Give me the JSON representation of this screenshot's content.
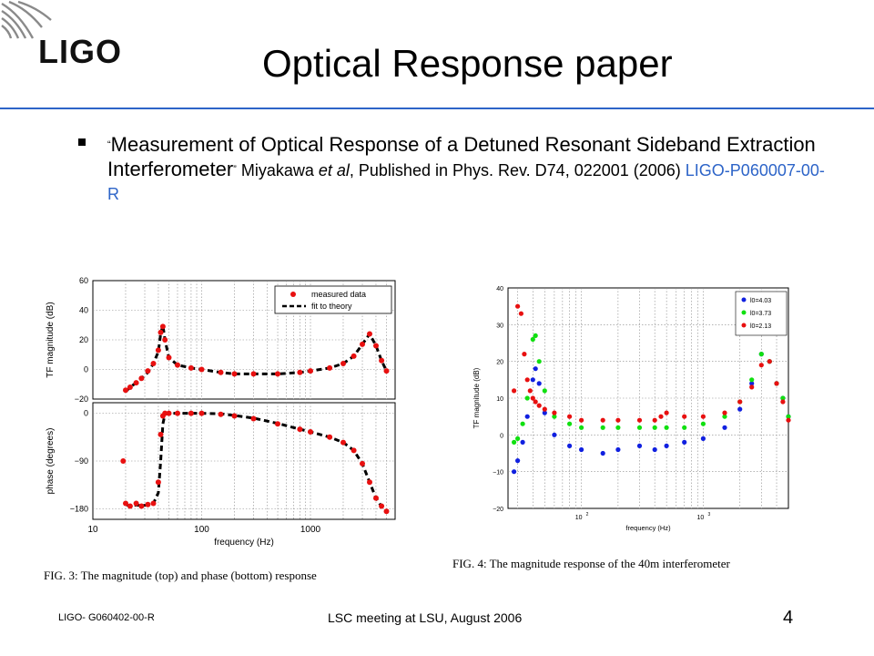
{
  "header": {
    "logo_text": "LIGO",
    "title": "Optical Response paper"
  },
  "bullet": {
    "open_quote": "“",
    "title_text": "Measurement of Optical Response of a Detuned Resonant Sideband Extraction Interferometer",
    "close_quote": "”",
    "authors": " Miyakawa ",
    "et_al": "et al",
    "published": ", Published in Phys. Rev. D74, 022001 (2006) ",
    "link_text": "LIGO-P060007-00-R"
  },
  "colors": {
    "accent_blue": "#2d64c8",
    "series_red": "#e81010",
    "series_green": "#10e010",
    "series_blue": "#1020e0"
  },
  "figures": {
    "fig3_caption": "FIG. 3: The magnitude (top) and phase (bottom) response",
    "fig4_caption": "FIG. 4: The magnitude response of the 40m interferometer"
  },
  "chart_data": [
    {
      "type": "line",
      "panel": "fig3-top",
      "xscale": "log",
      "xlim": [
        10,
        6000
      ],
      "ylim": [
        -20,
        60
      ],
      "ylabel": "TF magnitude (dB)",
      "yticks": [
        "60",
        "40",
        "20",
        "0",
        "−20"
      ],
      "legend": {
        "placement": "top-right",
        "entries": [
          "measured data",
          "fit to theory"
        ]
      },
      "grid": true,
      "series": [
        {
          "name": "measured data",
          "x": [
            20,
            22,
            25,
            28,
            32,
            36,
            40,
            42,
            44,
            46,
            50,
            60,
            80,
            100,
            150,
            200,
            300,
            500,
            800,
            1000,
            1500,
            2000,
            2500,
            3000,
            3500,
            4000,
            4500,
            5000
          ],
          "y": [
            -14,
            -12,
            -9,
            -6,
            -1,
            4,
            13,
            25,
            29,
            20,
            8,
            3,
            1,
            0,
            -2,
            -3,
            -3,
            -3,
            -2,
            -1,
            1,
            4,
            9,
            17,
            24,
            16,
            6,
            -1
          ]
        },
        {
          "name": "fit to theory",
          "x": [
            20,
            22,
            25,
            28,
            32,
            36,
            40,
            42,
            44,
            46,
            50,
            60,
            80,
            100,
            150,
            200,
            300,
            500,
            800,
            1000,
            1500,
            2000,
            2500,
            3000,
            3500,
            4000,
            4500,
            5000
          ],
          "y": [
            -15,
            -12,
            -9,
            -6,
            -2,
            4,
            12,
            24,
            30,
            20,
            8,
            3,
            1,
            0,
            -2,
            -3,
            -3,
            -3,
            -2,
            -1,
            1,
            4,
            9,
            17,
            24,
            16,
            6,
            -1
          ]
        }
      ]
    },
    {
      "type": "line",
      "panel": "fig3-bottom",
      "xscale": "log",
      "xlim": [
        10,
        6000
      ],
      "ylim": [
        -200,
        20
      ],
      "ylabel": "phase (degrees)",
      "xlabel": "frequency (Hz)",
      "yticks": [
        "0",
        "−90",
        "−180"
      ],
      "xticks": [
        "10",
        "100",
        "1000"
      ],
      "grid": true,
      "series": [
        {
          "name": "measured data",
          "x": [
            19,
            20,
            22,
            25,
            28,
            32,
            36,
            40,
            42,
            44,
            46,
            50,
            60,
            80,
            100,
            150,
            200,
            300,
            500,
            800,
            1000,
            1500,
            2000,
            2500,
            3000,
            3500,
            4000,
            4500,
            5000
          ],
          "y": [
            -90,
            -170,
            -175,
            -170,
            -175,
            -172,
            -170,
            -130,
            -40,
            -5,
            0,
            0,
            0,
            0,
            0,
            -2,
            -5,
            -10,
            -20,
            -30,
            -35,
            -45,
            -55,
            -70,
            -95,
            -130,
            -160,
            -175,
            -185
          ]
        },
        {
          "name": "fit to theory",
          "x": [
            20,
            22,
            25,
            28,
            32,
            36,
            40,
            42,
            44,
            46,
            50,
            60,
            80,
            100,
            150,
            200,
            300,
            500,
            800,
            1000,
            1500,
            2000,
            2500,
            3000,
            3500,
            4000,
            4500,
            5000
          ],
          "y": [
            -172,
            -175,
            -173,
            -174,
            -173,
            -170,
            -150,
            -90,
            -20,
            -2,
            0,
            0,
            0,
            0,
            -1,
            -4,
            -9,
            -19,
            -30,
            -35,
            -45,
            -55,
            -70,
            -95,
            -130,
            -160,
            -176,
            -185
          ]
        }
      ]
    },
    {
      "type": "scatter",
      "panel": "fig4",
      "xscale": "log",
      "xlim": [
        25,
        5000
      ],
      "ylim": [
        -20,
        40
      ],
      "ylabel": "TF magnitude (dB)",
      "xlabel": "frequency (Hz)",
      "yticks": [
        "40",
        "30",
        "20",
        "10",
        "0",
        "−10",
        "−20"
      ],
      "xticks": [
        "10",
        "2",
        "10",
        "3"
      ],
      "legend": {
        "placement": "top-right",
        "entries": [
          "l0=4.03",
          "l0=3.73",
          "l0=2.13"
        ]
      },
      "grid": true,
      "series": [
        {
          "name": "l0=4.03",
          "x": [
            28,
            30,
            33,
            36,
            40,
            42,
            45,
            50,
            60,
            80,
            100,
            150,
            200,
            300,
            400,
            500,
            700,
            1000,
            1500,
            2000,
            2500,
            3000,
            3500,
            4000,
            4500,
            5000
          ],
          "y": [
            -10,
            -7,
            -2,
            5,
            15,
            18,
            14,
            6,
            0,
            -3,
            -4,
            -5,
            -4,
            -3,
            -4,
            -3,
            -2,
            -1,
            2,
            7,
            14,
            22,
            20,
            14,
            10,
            5
          ]
        },
        {
          "name": "l0=3.73",
          "x": [
            28,
            30,
            33,
            36,
            40,
            42,
            45,
            50,
            60,
            80,
            100,
            150,
            200,
            300,
            400,
            500,
            700,
            1000,
            1500,
            2000,
            2500,
            3000,
            3500,
            4000,
            4500,
            5000
          ],
          "y": [
            -2,
            -1,
            3,
            10,
            26,
            27,
            20,
            12,
            5,
            3,
            2,
            2,
            2,
            2,
            2,
            2,
            2,
            3,
            5,
            9,
            15,
            22,
            20,
            14,
            10,
            5
          ]
        },
        {
          "name": "l0=2.13",
          "x": [
            28,
            30,
            32,
            34,
            36,
            38,
            40,
            42,
            45,
            50,
            60,
            80,
            100,
            150,
            200,
            300,
            400,
            450,
            500,
            700,
            1000,
            1500,
            2000,
            2500,
            3000,
            3500,
            4000,
            4500,
            5000
          ],
          "y": [
            12,
            35,
            33,
            22,
            15,
            12,
            10,
            9,
            8,
            7,
            6,
            5,
            4,
            4,
            4,
            4,
            4,
            5,
            6,
            5,
            5,
            6,
            9,
            13,
            19,
            20,
            14,
            9,
            4
          ]
        }
      ]
    }
  ],
  "footer": {
    "doc_id": "LIGO- G060402-00-R",
    "meeting": "LSC meeting at LSU, August 2006",
    "page_number": "4"
  }
}
